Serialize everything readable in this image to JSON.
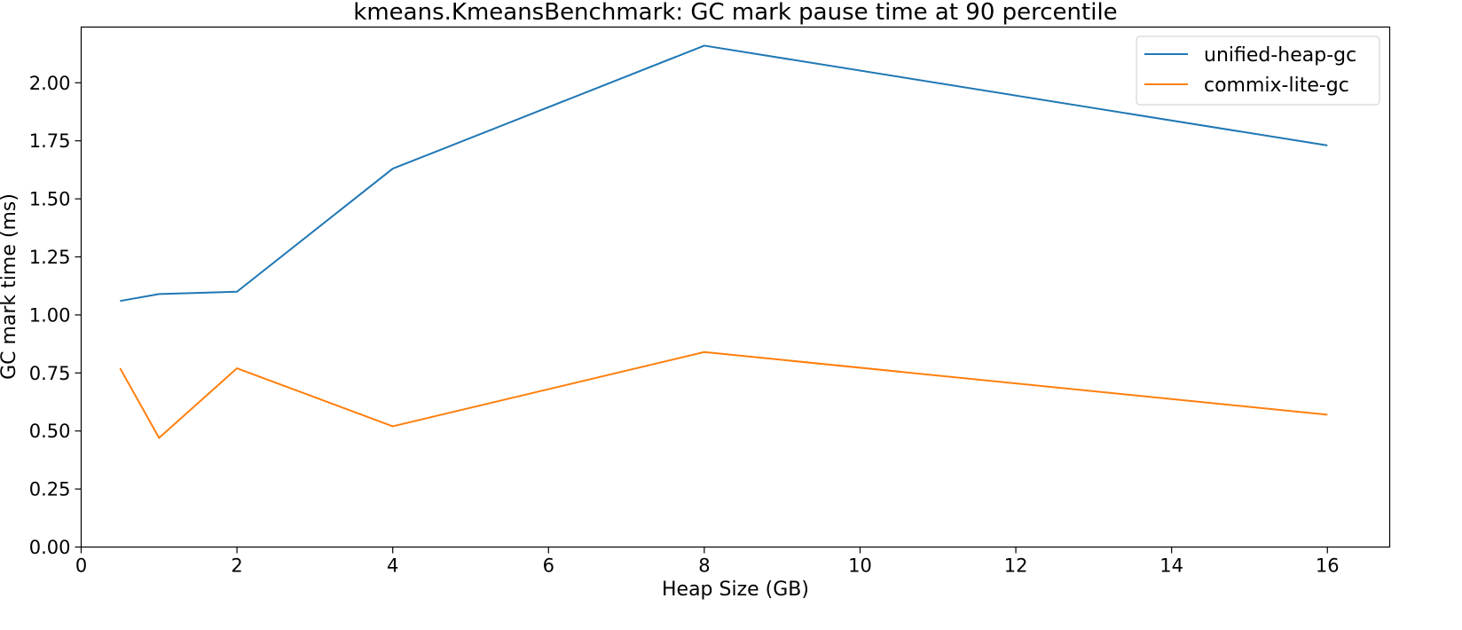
{
  "chart_data": {
    "type": "line",
    "title": "kmeans.KmeansBenchmark: GC mark pause time at 90 percentile",
    "xlabel": "Heap Size (GB)",
    "ylabel": "GC mark time (ms)",
    "xlim": [
      0,
      16.8
    ],
    "ylim": [
      0,
      2.24
    ],
    "xticks": [
      0,
      2,
      4,
      6,
      8,
      10,
      12,
      14,
      16
    ],
    "yticks": [
      0.0,
      0.25,
      0.5,
      0.75,
      1.0,
      1.25,
      1.5,
      1.75,
      2.0
    ],
    "ytick_labels": [
      "0.00",
      "0.25",
      "0.50",
      "0.75",
      "1.00",
      "1.25",
      "1.50",
      "1.75",
      "2.00"
    ],
    "grid": false,
    "legend_position": "top-right",
    "x": [
      0.5,
      1,
      2,
      4,
      8,
      16
    ],
    "series": [
      {
        "name": "unified-heap-gc",
        "color": "#1f77b4",
        "values": [
          1.06,
          1.09,
          1.1,
          1.63,
          2.16,
          1.73
        ]
      },
      {
        "name": "commix-lite-gc",
        "color": "#ff7f0e",
        "values": [
          0.77,
          0.47,
          0.77,
          0.52,
          0.84,
          0.57
        ]
      }
    ]
  }
}
